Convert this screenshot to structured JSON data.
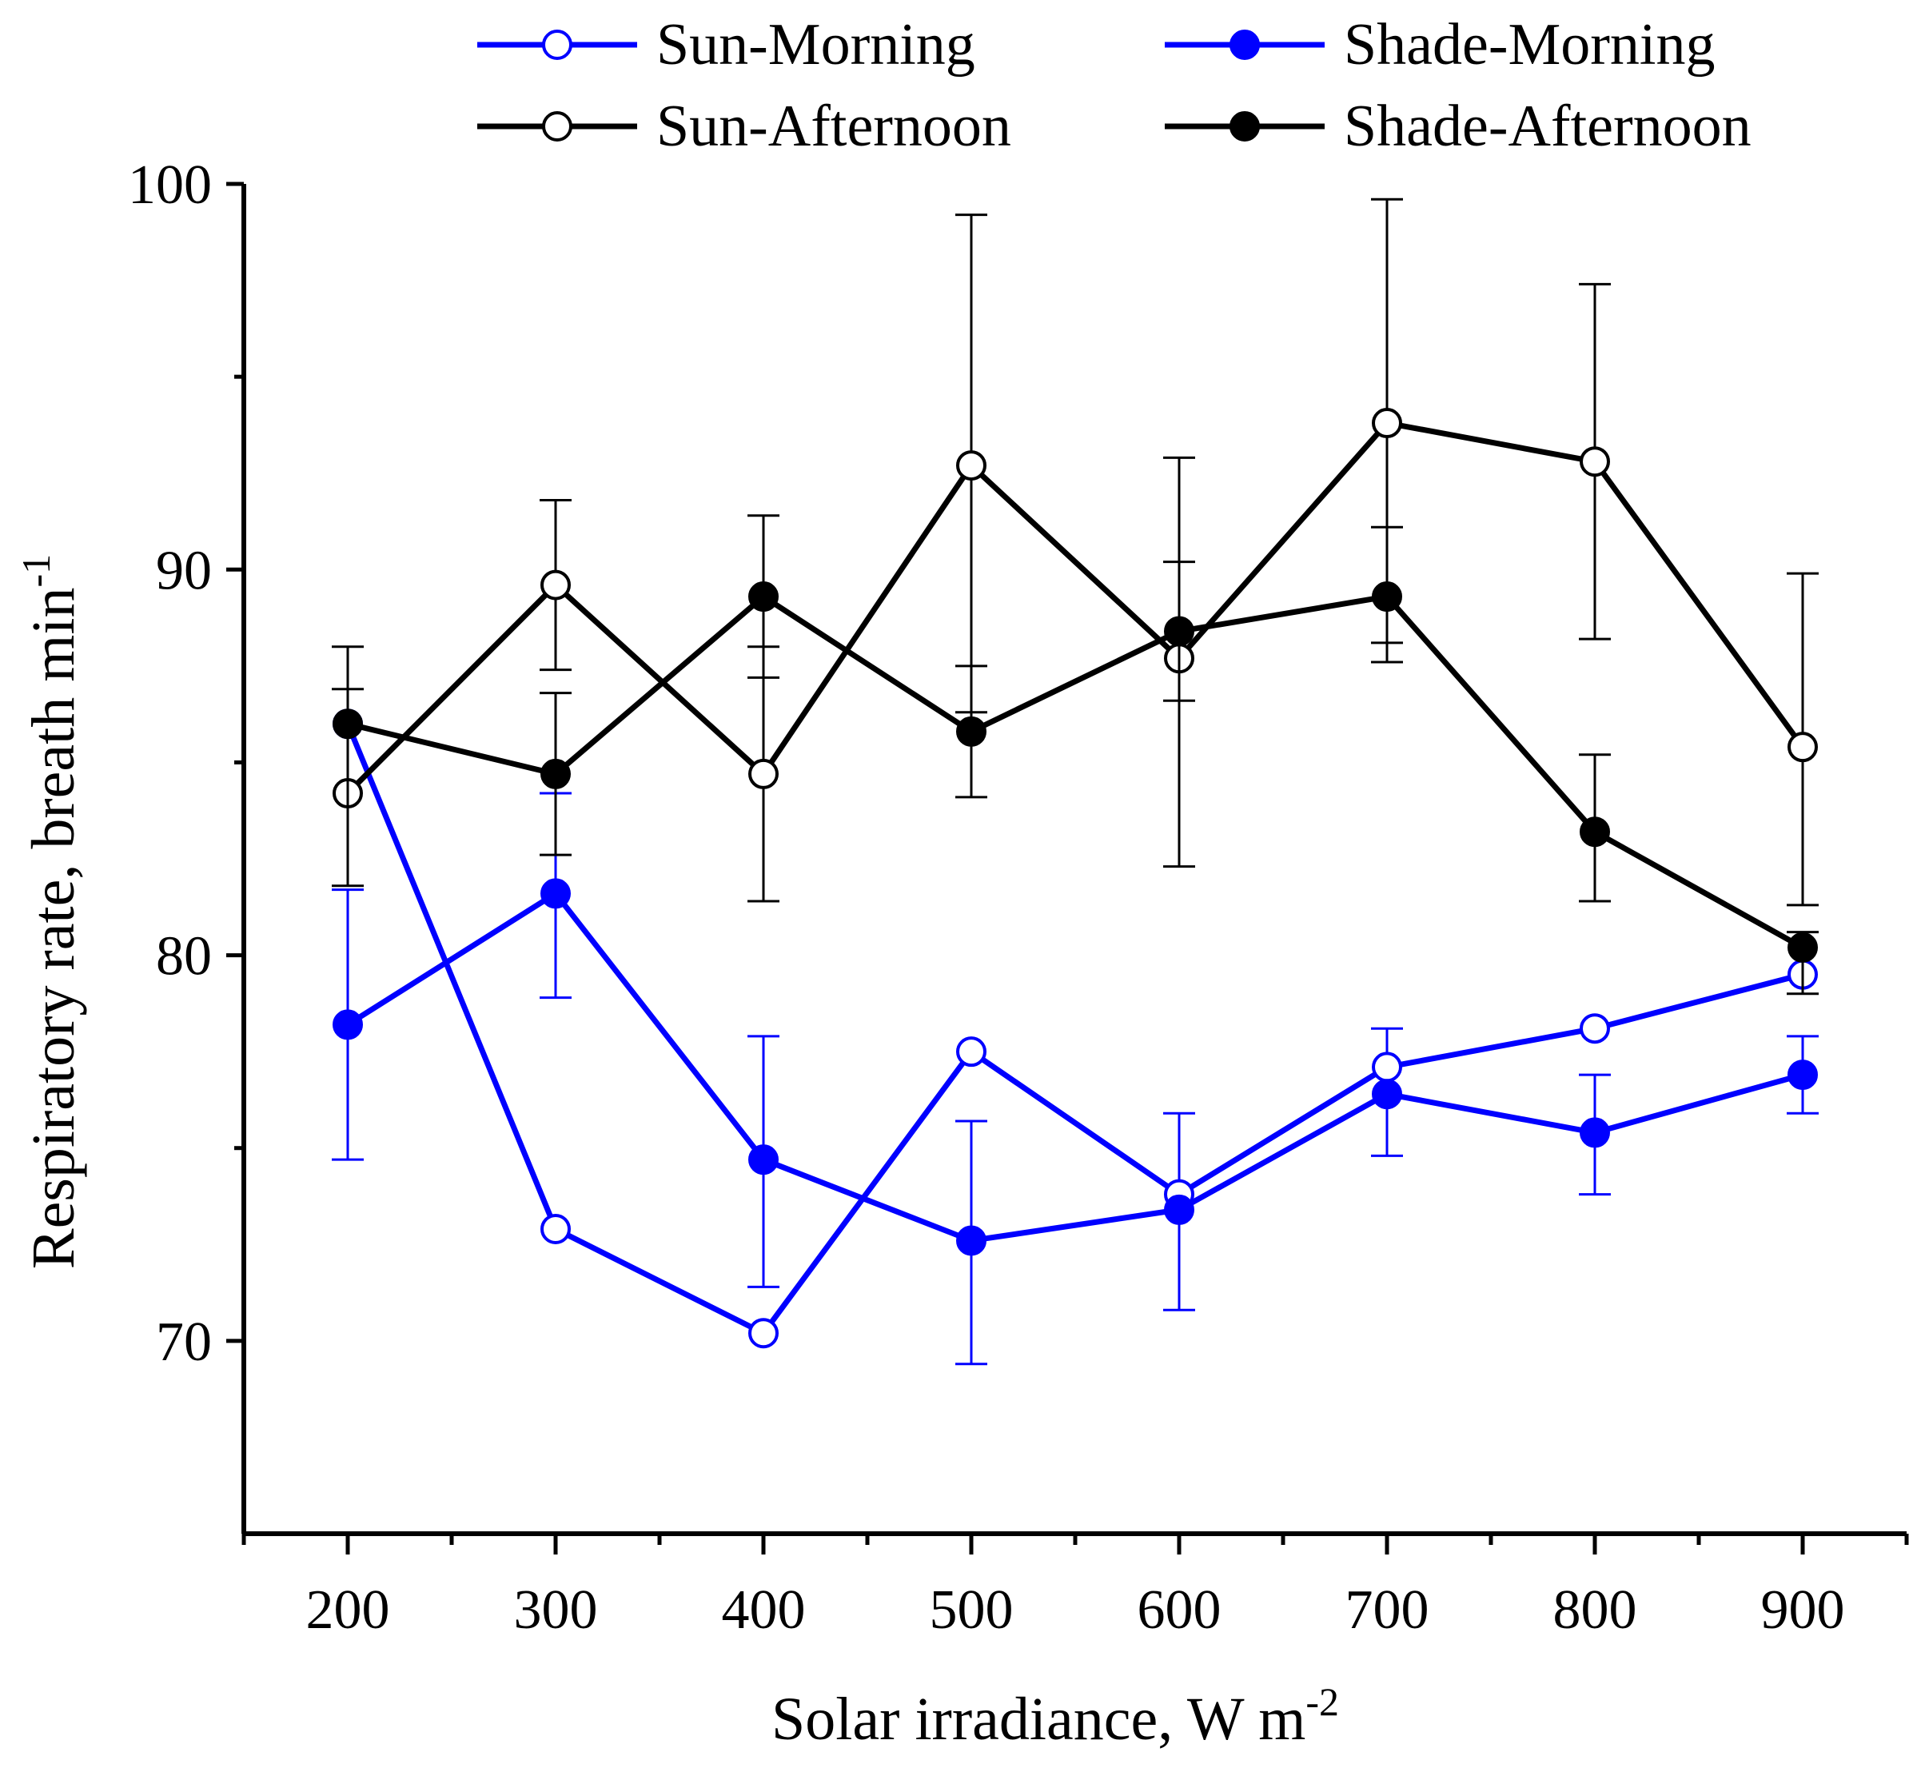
{
  "chart_data": {
    "type": "line",
    "title": "",
    "xlabel": "Solar irradiance, W m",
    "xlabel_sup": "-2",
    "ylabel": "Respiratory rate, breath min",
    "ylabel_sup": "-1",
    "x": [
      200,
      300,
      400,
      500,
      600,
      700,
      800,
      900
    ],
    "x_tick_labels": [
      "200",
      "300",
      "400",
      "500",
      "600",
      "700",
      "800",
      "900"
    ],
    "xlim": [
      150,
      950
    ],
    "ylim": [
      65,
      100
    ],
    "y_ticks": [
      70,
      80,
      90,
      100
    ],
    "y_tick_labels": [
      "70",
      "80",
      "90",
      "100"
    ],
    "grid": false,
    "legend_position": "top",
    "series": [
      {
        "name": "Sun-Morning",
        "color": "#0000ff",
        "marker": "open-circle",
        "values": [
          86.0,
          72.9,
          70.2,
          77.5,
          73.8,
          77.1,
          78.1,
          79.5
        ],
        "error_upper": [
          null,
          null,
          null,
          null,
          75.9,
          78.1,
          null,
          null
        ],
        "error_lower": [
          null,
          null,
          null,
          null,
          null,
          null,
          null,
          null
        ]
      },
      {
        "name": "Shade-Morning",
        "color": "#0000ff",
        "marker": "filled-circle",
        "values": [
          78.2,
          81.6,
          74.7,
          72.6,
          73.4,
          76.4,
          75.4,
          76.9
        ],
        "error_upper": [
          81.7,
          84.2,
          77.9,
          75.7,
          null,
          null,
          76.9,
          77.9
        ],
        "error_lower": [
          74.7,
          78.9,
          71.4,
          69.4,
          70.8,
          74.8,
          73.8,
          75.9
        ]
      },
      {
        "name": "Sun-Afternoon",
        "color": "#000000",
        "marker": "open-circle",
        "values": [
          84.2,
          89.6,
          84.7,
          92.7,
          87.7,
          93.8,
          92.8,
          85.4
        ],
        "error_upper": [
          88.0,
          91.8,
          91.4,
          99.2,
          92.9,
          99.6,
          97.4,
          89.9
        ],
        "error_lower": [
          null,
          87.4,
          81.4,
          86.3,
          82.3,
          88.1,
          88.2,
          81.3
        ]
      },
      {
        "name": "Shade-Afternoon",
        "color": "#000000",
        "marker": "filled-circle",
        "values": [
          86.0,
          84.7,
          89.3,
          85.8,
          88.4,
          89.3,
          83.2,
          80.2
        ],
        "error_upper": [
          86.9,
          86.8,
          88.0,
          87.5,
          90.2,
          91.1,
          85.2,
          80.6
        ],
        "error_lower": [
          81.8,
          82.6,
          87.2,
          84.1,
          86.6,
          87.6,
          81.4,
          79.0
        ]
      }
    ]
  }
}
